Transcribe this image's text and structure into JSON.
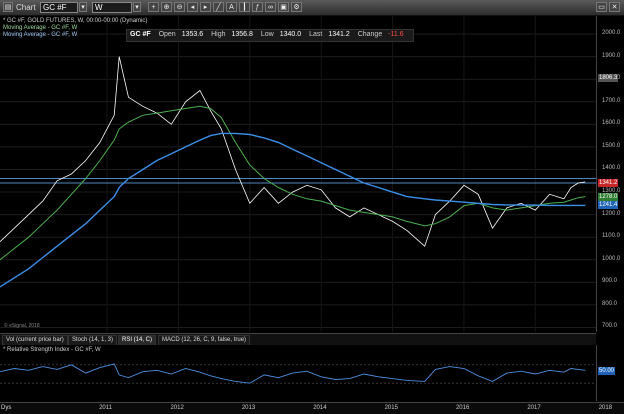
{
  "toolbar": {
    "chart_label": "Chart",
    "symbol_value": "GC #F",
    "interval_value": "W"
  },
  "legend": {
    "line1": "* GC #F, GOLD FUTURES, W, 00:00-00:00 (Dynamic)",
    "line2": "Moving Average - GC #F, W",
    "line3": "Moving Average - GC #F, W"
  },
  "quote": {
    "symbol": "GC #F",
    "open_label": "Open",
    "open_value": "1353.6",
    "high_label": "High",
    "high_value": "1356.8",
    "low_label": "Low",
    "low_value": "1340.0",
    "last_label": "Last",
    "last_value": "1341.2",
    "change_label": "Change",
    "change_value": "-11.6"
  },
  "yaxis": {
    "ticks": [
      "2000.0",
      "1900.0",
      "1800.0",
      "1700.0",
      "1600.0",
      "1500.0",
      "1400.0",
      "1300.0",
      "1200.0",
      "1100.0",
      "1000.0",
      "900.0",
      "800.0",
      "700.0"
    ],
    "marker_top": "1806.3",
    "marker_last": "1341.2",
    "marker_ma1": "1278.0",
    "marker_ma2": "1241.4"
  },
  "copyright": "© eSignal, 2018",
  "indicator_tabs": [
    "Vol (current price bar)",
    "Stoch (14, 1, 3)",
    "RSI (14, C)",
    "MACD (12, 26, C, 9, false, true)"
  ],
  "rsi": {
    "title": "* Relative Strength Index - GC #F, W",
    "marker": "50.00"
  },
  "xaxis": {
    "corner_label": "Dys",
    "ticks": [
      "2011",
      "2012",
      "2013",
      "2014",
      "2015",
      "2016",
      "2017",
      "2018"
    ]
  },
  "colors": {
    "price": "#ffffff",
    "ma_short": "#4caf50",
    "ma_long": "#3b8fe8",
    "hline": "#6ab4ff",
    "rsi_line": "#4d8fe0",
    "change_negative": "#ff4b4b"
  },
  "chart_data": {
    "type": "line",
    "x": [
      2010.0,
      2010.2,
      2010.4,
      2010.6,
      2010.8,
      2011.0,
      2011.2,
      2011.4,
      2011.6,
      2011.67,
      2011.8,
      2012.0,
      2012.2,
      2012.4,
      2012.6,
      2012.8,
      2012.95,
      2013.1,
      2013.3,
      2013.5,
      2013.7,
      2013.9,
      2014.1,
      2014.3,
      2014.5,
      2014.7,
      2014.9,
      2015.1,
      2015.3,
      2015.5,
      2015.7,
      2015.95,
      2016.1,
      2016.3,
      2016.5,
      2016.7,
      2016.9,
      2017.1,
      2017.3,
      2017.5,
      2017.7,
      2017.9,
      2018.0,
      2018.1,
      2018.2
    ],
    "series": [
      {
        "values": [
          1080,
          1140,
          1200,
          1260,
          1350,
          1380,
          1440,
          1520,
          1640,
          1900,
          1720,
          1680,
          1650,
          1600,
          1700,
          1750,
          1660,
          1580,
          1400,
          1250,
          1320,
          1250,
          1300,
          1330,
          1310,
          1230,
          1190,
          1230,
          1200,
          1170,
          1130,
          1060,
          1200,
          1260,
          1330,
          1290,
          1140,
          1230,
          1250,
          1220,
          1290,
          1270,
          1320,
          1340,
          1345
        ]
      },
      {
        "values": [
          1000,
          1050,
          1100,
          1160,
          1220,
          1290,
          1360,
          1440,
          1530,
          1580,
          1610,
          1640,
          1650,
          1660,
          1670,
          1680,
          1670,
          1630,
          1520,
          1420,
          1360,
          1320,
          1290,
          1270,
          1260,
          1240,
          1220,
          1210,
          1200,
          1190,
          1170,
          1150,
          1160,
          1190,
          1240,
          1250,
          1230,
          1220,
          1230,
          1240,
          1250,
          1255,
          1265,
          1275,
          1280
        ]
      },
      {
        "values": [
          880,
          920,
          960,
          1010,
          1060,
          1110,
          1160,
          1220,
          1280,
          1320,
          1360,
          1400,
          1440,
          1470,
          1500,
          1530,
          1550,
          1560,
          1560,
          1555,
          1540,
          1520,
          1490,
          1460,
          1430,
          1400,
          1370,
          1340,
          1320,
          1300,
          1280,
          1270,
          1265,
          1260,
          1255,
          1250,
          1245,
          1243,
          1242,
          1242,
          1241,
          1241,
          1241,
          1241,
          1241
        ]
      }
    ],
    "ylim": [
      680,
      2080
    ],
    "xlim": [
      2010.0,
      2018.35
    ],
    "hlines": [
      1360,
      1340
    ],
    "rsi_series": [
      55,
      62,
      58,
      66,
      60,
      70,
      52,
      64,
      72,
      48,
      42,
      55,
      58,
      50,
      62,
      54,
      46,
      40,
      34,
      30,
      48,
      42,
      52,
      56,
      44,
      38,
      40,
      50,
      44,
      40,
      36,
      34,
      60,
      66,
      62,
      46,
      34,
      52,
      56,
      50,
      58,
      54,
      62,
      60,
      58
    ],
    "rsi_ylim": [
      0,
      100
    ],
    "rsi_levels": [
      70,
      30
    ]
  }
}
